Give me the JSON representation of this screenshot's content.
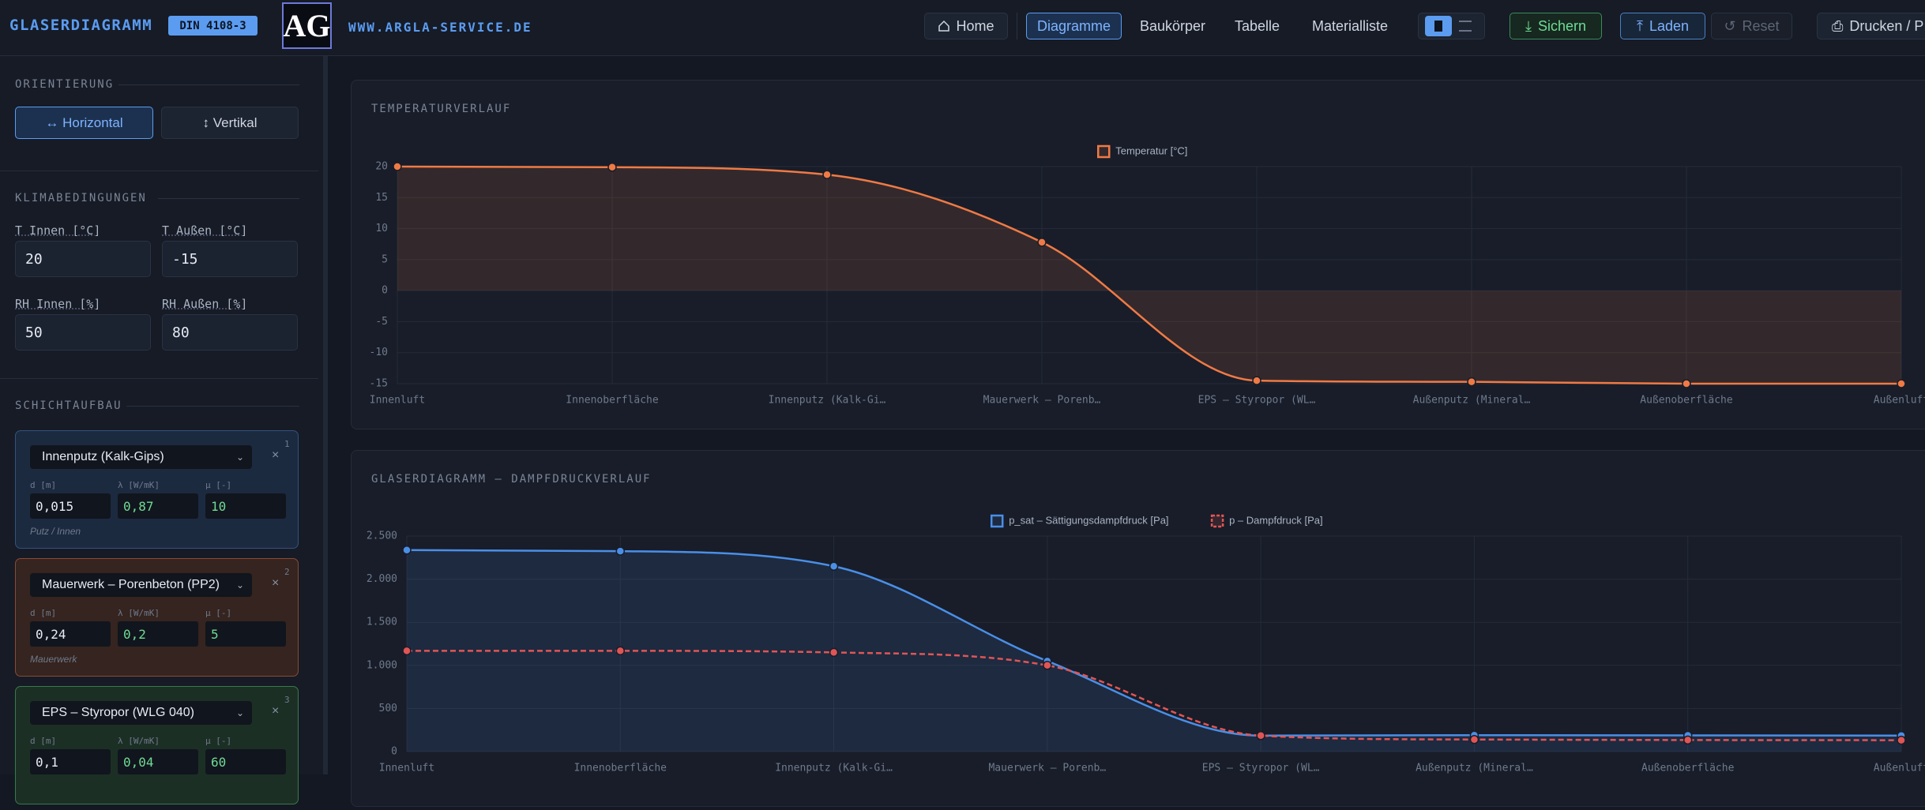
{
  "header": {
    "title": "GLASERDIAGRAMM",
    "badge": "DIN 4108-3",
    "logo": "AG",
    "website": "WWW.ARGLA-SERVICE.DE",
    "nav": [
      "Home",
      "Diagramme",
      "Baukörper",
      "Tabelle",
      "Materialliste"
    ],
    "actions": [
      "Sichern",
      "Laden",
      "Reset",
      "Drucken / PDF"
    ]
  },
  "sidebar": {
    "orientation": {
      "title": "ORIENTIERUNG",
      "options": [
        "↔ Horizontal",
        "↕ Vertikal"
      ]
    },
    "climate": {
      "title": "KLIMABEDINGUNGEN",
      "fields": [
        {
          "label": "T Innen [°C]",
          "value": "20"
        },
        {
          "label": "T Außen [°C]",
          "value": "-15"
        },
        {
          "label": "RH Innen [%]",
          "value": "50"
        },
        {
          "label": "RH Außen [%]",
          "value": "80"
        }
      ]
    },
    "layers": {
      "title": "SCHICHTAUFBAU",
      "field_labels": [
        "d [m]",
        "λ [W/mK]",
        "μ [-]"
      ],
      "items": [
        {
          "index": "1",
          "material": "Innenputz (Kalk-Gips)",
          "d": "0,015",
          "lambda": "0,87",
          "mu": "10",
          "group": "Putz / Innen"
        },
        {
          "index": "2",
          "material": "Mauerwerk – Porenbeton (PP2)",
          "d": "0,24",
          "lambda": "0,2",
          "mu": "5",
          "group": "Mauerwerk"
        },
        {
          "index": "3",
          "material": "EPS – Styropor (WLG 040)",
          "d": "0,1",
          "lambda": "0,04",
          "mu": "60",
          "group": ""
        }
      ]
    }
  },
  "chart_data": [
    {
      "type": "line",
      "title": "TEMPERATURVERLAUF",
      "categories": [
        "Innenluft",
        "Innenoberfläche",
        "Innenputz (Kalk-Gi…",
        "Mauerwerk – Porenb…",
        "EPS – Styropor (WL…",
        "Außenputz (Mineral…",
        "Außenoberfläche",
        "Außenluft"
      ],
      "series": [
        {
          "name": "Temperatur [°C]",
          "color": "#f07a45",
          "fill": "rgba(240,122,69,0.13)",
          "values": [
            20,
            19.9,
            18.7,
            7.8,
            -14.5,
            -14.7,
            -15,
            -15
          ]
        }
      ],
      "ylim": [
        -15,
        20
      ],
      "yticks": [
        -15,
        -10,
        -5,
        0,
        5,
        10,
        15,
        20
      ],
      "grid": true,
      "legend": "top"
    },
    {
      "type": "line",
      "title": "GLASERDIAGRAMM – DAMPFDRUCKVERLAUF",
      "categories": [
        "Innenluft",
        "Innenoberfläche",
        "Innenputz (Kalk-Gi…",
        "Mauerwerk – Porenb…",
        "EPS – Styropor (WL…",
        "Außenputz (Mineral…",
        "Außenoberfläche",
        "Außenluft"
      ],
      "series": [
        {
          "name": "p_sat – Sättigungsdampfdruck [Pa]",
          "color": "#4a8fe7",
          "fill": "rgba(74,143,231,0.12)",
          "values": [
            2337,
            2325,
            2150,
            1050,
            185,
            190,
            188,
            186
          ]
        },
        {
          "name": "p – Dampfdruck [Pa]",
          "color": "#e05555",
          "dashed": true,
          "values": [
            1169,
            1169,
            1150,
            1000,
            185,
            140,
            134,
            132
          ]
        }
      ],
      "ylim": [
        0,
        2500
      ],
      "yticks": [
        0,
        500,
        {
          "value": 1000,
          "label": "1.000"
        },
        {
          "value": 1500,
          "label": "1.500"
        },
        {
          "value": 2000,
          "label": "2.000"
        },
        {
          "value": 2500,
          "label": "2.500"
        }
      ],
      "grid": true,
      "legend": "top"
    }
  ]
}
